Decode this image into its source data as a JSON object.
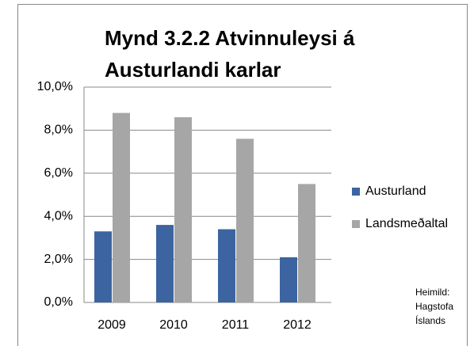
{
  "chart_data": {
    "type": "bar",
    "title": [
      "Mynd  3.2.2 Atvinnuleysi á",
      "Austurlandi karlar"
    ],
    "categories": [
      "2009",
      "2010",
      "2011",
      "2012"
    ],
    "series": [
      {
        "name": "Austurland",
        "color": "#3c64a0",
        "values": [
          3.3,
          3.6,
          3.4,
          2.1
        ]
      },
      {
        "name": "Landsmeðaltal",
        "color": "#a6a6a6",
        "values": [
          8.8,
          8.6,
          7.6,
          5.5
        ]
      }
    ],
    "ylim": [
      0,
      10
    ],
    "yticks": [
      {
        "value": 0,
        "label": "0,0%"
      },
      {
        "value": 2,
        "label": "2,0%"
      },
      {
        "value": 4,
        "label": "4,0%"
      },
      {
        "value": 6,
        "label": "6,0%"
      },
      {
        "value": 8,
        "label": "8,0%"
      },
      {
        "value": 10,
        "label": "10,0%"
      }
    ],
    "grid": true,
    "legend": "right",
    "annotation": [
      "Heimild:",
      "Hagstofa",
      "Íslands"
    ]
  }
}
